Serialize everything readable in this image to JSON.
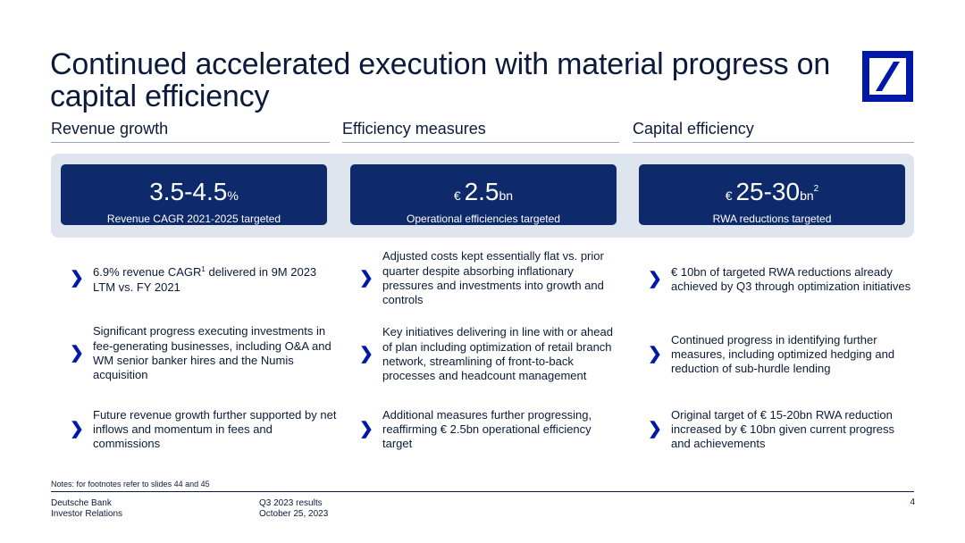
{
  "title": "Continued accelerated execution with material progress on capital efficiency",
  "columns": [
    {
      "header": "Revenue growth",
      "kpi": {
        "prefix": "",
        "value": "3.5-4.5",
        "unit": "%",
        "sup": "",
        "label": "Revenue CAGR 2021-2025 targeted"
      },
      "bullets": [
        {
          "text": "6.9% revenue CAGR",
          "sup": "1",
          "text2": " delivered in 9M 2023 LTM vs. FY 2021"
        },
        {
          "text": "Significant progress executing investments in fee-generating businesses, including O&A and WM senior banker hires and the Numis acquisition",
          "sup": "",
          "text2": ""
        },
        {
          "text": "Future revenue growth further supported by net inflows and momentum in fees and commissions",
          "sup": "",
          "text2": ""
        }
      ]
    },
    {
      "header": "Efficiency measures",
      "kpi": {
        "prefix": "€ ",
        "value": "2.5",
        "unit": "bn",
        "sup": "",
        "label": "Operational efficiencies targeted"
      },
      "bullets": [
        {
          "text": "Adjusted costs kept essentially flat vs. prior quarter despite absorbing inflationary pressures and investments into growth and controls",
          "sup": "",
          "text2": ""
        },
        {
          "text": "Key initiatives delivering in line with or ahead of plan including optimization of retail branch network, streamlining of front-to-back processes and headcount management",
          "sup": "",
          "text2": ""
        },
        {
          "text": "Additional measures further progressing, reaffirming € 2.5bn operational efficiency target",
          "sup": "",
          "text2": ""
        }
      ]
    },
    {
      "header": "Capital efficiency",
      "kpi": {
        "prefix": "€ ",
        "value": "25-30",
        "unit": "bn",
        "sup": "2",
        "label": "RWA reductions targeted"
      },
      "bullets": [
        {
          "text": "€ 10bn of targeted RWA reductions already achieved by Q3 through optimization initiatives",
          "sup": "",
          "text2": ""
        },
        {
          "text": "Continued progress in identifying further measures, including optimized hedging and reduction of sub-hurdle lending",
          "sup": "",
          "text2": ""
        },
        {
          "text": "Original target of € 15-20bn RWA reduction increased by € 10bn given current progress and achievements",
          "sup": "",
          "text2": ""
        }
      ]
    }
  ],
  "chevron": "❯",
  "notes": "Notes: for footnotes refer to slides 44 and 45",
  "footer": {
    "company": "Deutsche Bank",
    "department": "Investor Relations",
    "report": "Q3 2023 results",
    "date": "October 25, 2023",
    "page": "4"
  },
  "colors": {
    "brand_blue": "#0018a8",
    "navy": "#0e2a6b",
    "band": "#dfe5ee"
  },
  "logo_icon": "deutsche-bank-logo"
}
